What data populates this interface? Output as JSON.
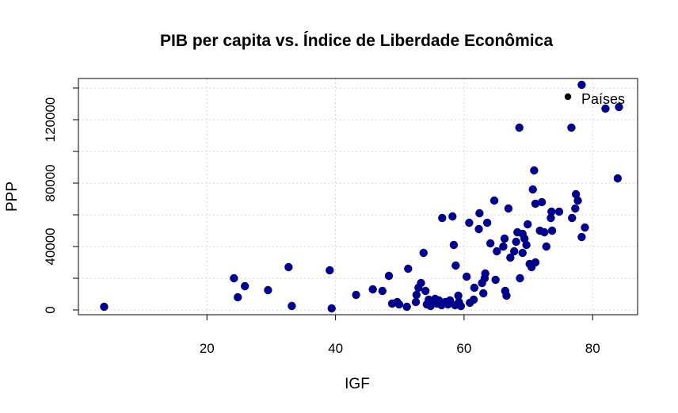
{
  "chart_data": {
    "type": "scatter",
    "title": "PIB per capita vs. Índice de Liberdade Econômica",
    "xlabel": "IGF",
    "ylabel": "PPP",
    "xlim": [
      0,
      87
    ],
    "ylim": [
      -3000,
      146000
    ],
    "x_ticks": [
      20,
      40,
      60,
      80
    ],
    "y_ticks": [
      0,
      40000,
      80000,
      120000
    ],
    "grid": true,
    "legend": {
      "position": "top-right",
      "entries": [
        "Países"
      ]
    },
    "colors": {
      "points": "#00008B",
      "grid": "#D3D3D3",
      "legend_marker": "#000000"
    },
    "points": [
      {
        "x": 4,
        "y": 2000
      },
      {
        "x": 24.2,
        "y": 20000
      },
      {
        "x": 24.8,
        "y": 8000
      },
      {
        "x": 25.9,
        "y": 15000
      },
      {
        "x": 29.5,
        "y": 12500
      },
      {
        "x": 32.7,
        "y": 27000
      },
      {
        "x": 33.2,
        "y": 2500
      },
      {
        "x": 39.1,
        "y": 25000
      },
      {
        "x": 39.4,
        "y": 1000
      },
      {
        "x": 43.2,
        "y": 9500
      },
      {
        "x": 45.8,
        "y": 13000
      },
      {
        "x": 47.3,
        "y": 12000
      },
      {
        "x": 48.3,
        "y": 21500
      },
      {
        "x": 48.8,
        "y": 4000
      },
      {
        "x": 49.6,
        "y": 5000
      },
      {
        "x": 49.9,
        "y": 3500
      },
      {
        "x": 51.1,
        "y": 2000
      },
      {
        "x": 51.3,
        "y": 26000
      },
      {
        "x": 52.5,
        "y": 5000
      },
      {
        "x": 52.6,
        "y": 9500
      },
      {
        "x": 52.9,
        "y": 14000
      },
      {
        "x": 53.3,
        "y": 17000
      },
      {
        "x": 53.7,
        "y": 36000
      },
      {
        "x": 54,
        "y": 12000
      },
      {
        "x": 54.2,
        "y": 3500
      },
      {
        "x": 54.5,
        "y": 6500
      },
      {
        "x": 54.8,
        "y": 2500
      },
      {
        "x": 55,
        "y": 5000
      },
      {
        "x": 55.5,
        "y": 7000
      },
      {
        "x": 55.8,
        "y": 4000
      },
      {
        "x": 56.1,
        "y": 6000
      },
      {
        "x": 56.5,
        "y": 3000
      },
      {
        "x": 56.6,
        "y": 58000
      },
      {
        "x": 57.1,
        "y": 5000
      },
      {
        "x": 57.5,
        "y": 3500
      },
      {
        "x": 57.8,
        "y": 6000
      },
      {
        "x": 58.2,
        "y": 59000
      },
      {
        "x": 58.4,
        "y": 41000
      },
      {
        "x": 58.6,
        "y": 3000
      },
      {
        "x": 58.7,
        "y": 28000
      },
      {
        "x": 59.1,
        "y": 9000
      },
      {
        "x": 59.2,
        "y": 5000
      },
      {
        "x": 59.5,
        "y": 2500
      },
      {
        "x": 60.4,
        "y": 21000
      },
      {
        "x": 60.8,
        "y": 55000
      },
      {
        "x": 60.9,
        "y": 4500
      },
      {
        "x": 61.5,
        "y": 6500
      },
      {
        "x": 61.6,
        "y": 14000
      },
      {
        "x": 62.3,
        "y": 51000
      },
      {
        "x": 62.4,
        "y": 61000
      },
      {
        "x": 62.8,
        "y": 17000
      },
      {
        "x": 63,
        "y": 10500
      },
      {
        "x": 63.2,
        "y": 20000
      },
      {
        "x": 63.3,
        "y": 23000
      },
      {
        "x": 63.6,
        "y": 55000
      },
      {
        "x": 64.1,
        "y": 42000
      },
      {
        "x": 64.7,
        "y": 69000
      },
      {
        "x": 64.9,
        "y": 19000
      },
      {
        "x": 65.1,
        "y": 37000
      },
      {
        "x": 66.1,
        "y": 40000
      },
      {
        "x": 66.3,
        "y": 45000
      },
      {
        "x": 66.4,
        "y": 12000
      },
      {
        "x": 66.6,
        "y": 9000
      },
      {
        "x": 66.9,
        "y": 64000
      },
      {
        "x": 67.2,
        "y": 33000
      },
      {
        "x": 67.8,
        "y": 37000
      },
      {
        "x": 68.1,
        "y": 43000
      },
      {
        "x": 68.3,
        "y": 49000
      },
      {
        "x": 68.6,
        "y": 115000
      },
      {
        "x": 68.7,
        "y": 20000
      },
      {
        "x": 69.1,
        "y": 36000
      },
      {
        "x": 69.1,
        "y": 48000
      },
      {
        "x": 69.4,
        "y": 45000
      },
      {
        "x": 69.7,
        "y": 41000
      },
      {
        "x": 69.9,
        "y": 54000
      },
      {
        "x": 70.2,
        "y": 29000
      },
      {
        "x": 70.5,
        "y": 27000
      },
      {
        "x": 70.7,
        "y": 76000
      },
      {
        "x": 70.9,
        "y": 88000
      },
      {
        "x": 71.1,
        "y": 30000
      },
      {
        "x": 71.1,
        "y": 67000
      },
      {
        "x": 71.8,
        "y": 50000
      },
      {
        "x": 72.1,
        "y": 68000
      },
      {
        "x": 72.5,
        "y": 49000
      },
      {
        "x": 72.8,
        "y": 40000
      },
      {
        "x": 73.5,
        "y": 58000
      },
      {
        "x": 73.6,
        "y": 62000
      },
      {
        "x": 73.7,
        "y": 50000
      },
      {
        "x": 74.8,
        "y": 62000
      },
      {
        "x": 76.7,
        "y": 115000
      },
      {
        "x": 76.8,
        "y": 58000
      },
      {
        "x": 77.3,
        "y": 64000
      },
      {
        "x": 77.4,
        "y": 73000
      },
      {
        "x": 77.7,
        "y": 69000
      },
      {
        "x": 78.3,
        "y": 142000
      },
      {
        "x": 78.3,
        "y": 46000
      },
      {
        "x": 78.8,
        "y": 52000
      },
      {
        "x": 82,
        "y": 127000
      },
      {
        "x": 83.9,
        "y": 83000
      },
      {
        "x": 84.1,
        "y": 128000
      }
    ]
  }
}
